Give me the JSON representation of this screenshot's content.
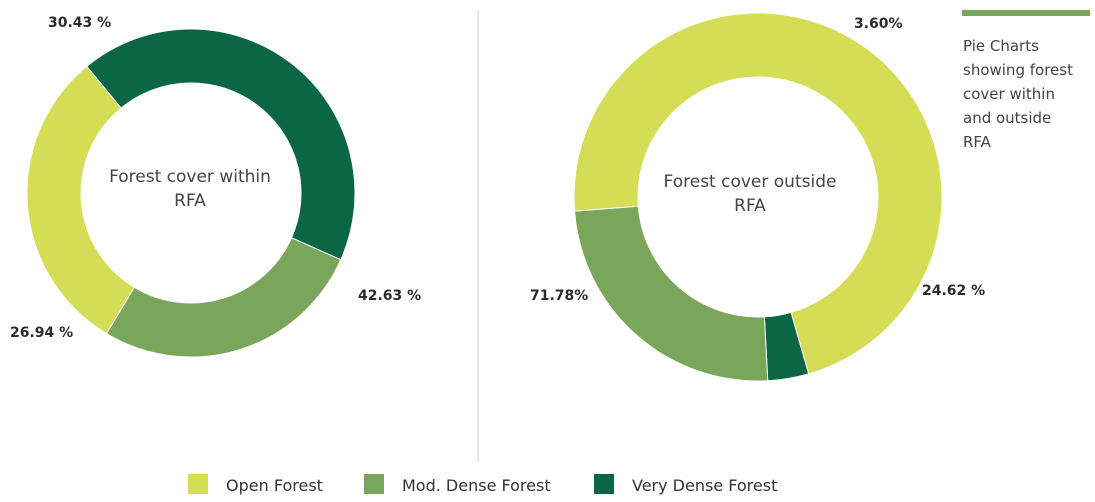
{
  "colors": {
    "open_forest": "#d4dd55",
    "mod_dense_forest": "#7aa65c",
    "very_dense_forest": "#0a6645",
    "accent_bar": "#7aa65c",
    "divider": "#cfcfcf"
  },
  "side_note": {
    "lines": [
      "Pie Charts",
      "showing forest",
      "cover within",
      "and outside",
      "RFA"
    ]
  },
  "legend": {
    "items": [
      {
        "label": "Open Forest",
        "color": "#d4dd55"
      },
      {
        "label": "Mod. Dense Forest",
        "color": "#7aa65c"
      },
      {
        "label": "Very Dense Forest",
        "color": "#0a6645"
      }
    ]
  },
  "chart_data": [
    {
      "type": "pie",
      "title": "",
      "center_label": [
        "Forest cover within",
        "RFA"
      ],
      "categories": [
        "Open Forest",
        "Very Dense Forest",
        "Mod. Dense Forest"
      ],
      "values": [
        30.43,
        42.63,
        26.94
      ],
      "value_labels": [
        "30.43 %",
        "42.63 %",
        "26.94 %"
      ],
      "colors": [
        "#d4dd55",
        "#0a6645",
        "#7aa65c"
      ]
    },
    {
      "type": "pie",
      "title": "",
      "center_label": [
        "Forest cover outside",
        "RFA"
      ],
      "categories": [
        "Very Dense Forest",
        "Mod. Dense Forest",
        "Open Forest"
      ],
      "values": [
        3.6,
        24.62,
        71.78
      ],
      "value_labels": [
        "3.60%",
        "24.62 %",
        "71.78%"
      ],
      "colors": [
        "#0a6645",
        "#7aa65c",
        "#d4dd55"
      ]
    }
  ]
}
